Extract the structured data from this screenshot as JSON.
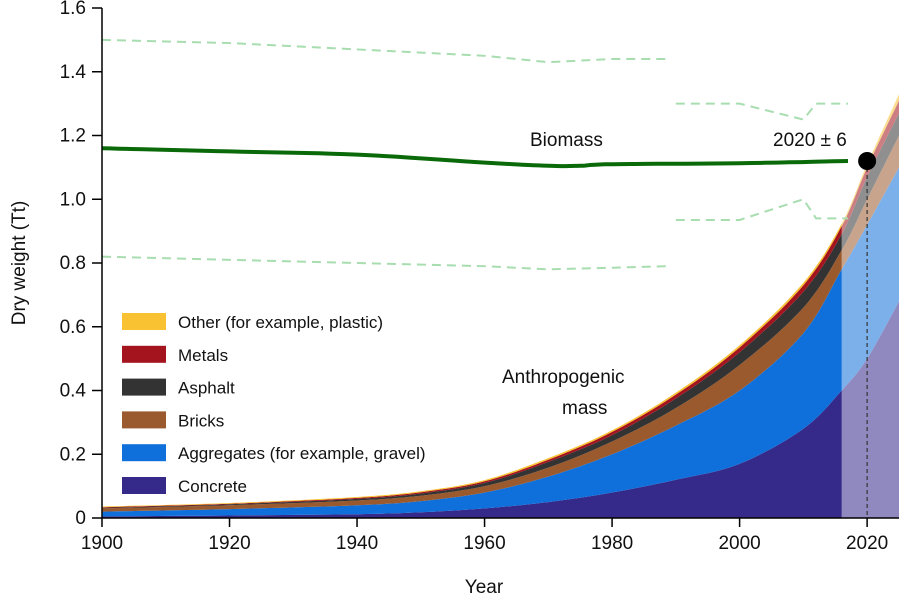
{
  "chart_data": {
    "type": "area",
    "xlabel": "Year",
    "ylabel": "Dry weight (Tt)",
    "xlim": [
      1900,
      2025
    ],
    "ylim": [
      0,
      1.6
    ],
    "xticks": [
      "1900",
      "1920",
      "1940",
      "1960",
      "1980",
      "2000",
      "2020"
    ],
    "yticks": [
      "0",
      "0.2",
      "0.4",
      "0.6",
      "0.8",
      "1.0",
      "1.2",
      "1.4",
      "1.6"
    ],
    "grid": false,
    "legend_position": "bottom-left",
    "projection_start_year": 2016,
    "x": [
      1900,
      1920,
      1940,
      1950,
      1960,
      1970,
      1980,
      1990,
      2000,
      2010,
      2016,
      2020,
      2025
    ],
    "stacked_series": [
      {
        "name": "Concrete",
        "color": "#35298a",
        "values": [
          0.005,
          0.008,
          0.012,
          0.018,
          0.03,
          0.05,
          0.08,
          0.12,
          0.17,
          0.28,
          0.4,
          0.5,
          0.68
        ]
      },
      {
        "name": "Aggregates (for example, gravel)",
        "color": "#0f6fdb",
        "values": [
          0.015,
          0.02,
          0.028,
          0.035,
          0.05,
          0.08,
          0.12,
          0.17,
          0.23,
          0.3,
          0.38,
          0.42,
          0.42
        ]
      },
      {
        "name": "Bricks",
        "color": "#9a5a2d",
        "values": [
          0.01,
          0.012,
          0.015,
          0.017,
          0.02,
          0.028,
          0.04,
          0.055,
          0.08,
          0.08,
          0.06,
          0.08,
          0.1
        ]
      },
      {
        "name": "Asphalt",
        "color": "#333333",
        "values": [
          0.002,
          0.003,
          0.005,
          0.007,
          0.01,
          0.018,
          0.02,
          0.03,
          0.04,
          0.05,
          0.05,
          0.07,
          0.07
        ]
      },
      {
        "name": "Metals",
        "color": "#a3141e",
        "values": [
          0.002,
          0.002,
          0.003,
          0.004,
          0.005,
          0.007,
          0.01,
          0.012,
          0.015,
          0.02,
          0.025,
          0.03,
          0.04
        ]
      },
      {
        "name": "Other (for example, plastic)",
        "color": "#f9c232",
        "values": [
          0.002,
          0.002,
          0.003,
          0.003,
          0.004,
          0.005,
          0.005,
          0.006,
          0.007,
          0.008,
          0.008,
          0.01,
          0.02
        ]
      }
    ],
    "biomass": {
      "color": "#0a6a0a",
      "points": [
        [
          1900,
          1.16
        ],
        [
          1920,
          1.15
        ],
        [
          1940,
          1.14
        ],
        [
          1960,
          1.115
        ],
        [
          1970,
          1.105
        ],
        [
          1975,
          1.105
        ],
        [
          1980,
          1.11
        ],
        [
          2000,
          1.113
        ],
        [
          2017,
          1.12
        ]
      ]
    },
    "biomass_uncertainty": {
      "color": "#a8ddb0",
      "upper": [
        [
          [
            1900,
            1.5
          ],
          [
            1920,
            1.49
          ],
          [
            1940,
            1.47
          ],
          [
            1960,
            1.45
          ],
          [
            1970,
            1.43
          ],
          [
            1980,
            1.44
          ],
          [
            1989,
            1.44
          ]
        ],
        [
          [
            1990,
            1.3
          ],
          [
            2000,
            1.3
          ],
          [
            2010,
            1.25
          ],
          [
            2012,
            1.3
          ],
          [
            2017,
            1.3
          ]
        ]
      ],
      "lower": [
        [
          [
            1900,
            0.82
          ],
          [
            1940,
            0.8
          ],
          [
            1960,
            0.79
          ],
          [
            1970,
            0.78
          ],
          [
            1989,
            0.79
          ]
        ],
        [
          [
            1990,
            0.935
          ],
          [
            2000,
            0.935
          ],
          [
            2010,
            1.0
          ],
          [
            2012,
            0.94
          ],
          [
            2017,
            0.94
          ]
        ]
      ]
    },
    "crossover_point": {
      "x": 2020,
      "y": 1.12
    },
    "annotations": {
      "biomass": "Biomass",
      "anthro_line1": "Anthropogenic",
      "anthro_line2": "mass",
      "crossover": "2020 ± 6"
    }
  }
}
